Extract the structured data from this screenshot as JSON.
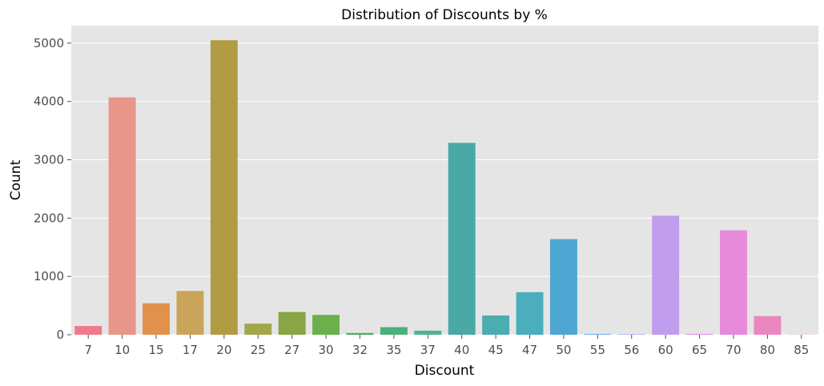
{
  "chart_data": {
    "type": "bar",
    "title": "Distribution of Discounts by %",
    "xlabel": "Discount",
    "ylabel": "Count",
    "categories": [
      "7",
      "10",
      "15",
      "17",
      "20",
      "25",
      "27",
      "30",
      "32",
      "35",
      "37",
      "40",
      "45",
      "47",
      "50",
      "55",
      "56",
      "60",
      "65",
      "70",
      "80",
      "85"
    ],
    "values": [
      150,
      4070,
      540,
      750,
      5050,
      190,
      390,
      340,
      30,
      130,
      70,
      3290,
      330,
      730,
      1640,
      15,
      10,
      2040,
      15,
      1790,
      320,
      3
    ],
    "colors": [
      "#f0798f",
      "#e8958a",
      "#e0924c",
      "#c9a45a",
      "#b19c44",
      "#a2a74a",
      "#88a644",
      "#6bb04a",
      "#4aad5a",
      "#4bb07a",
      "#4fb294",
      "#4aa9a6",
      "#4bacb2",
      "#4baebd",
      "#4da7d2",
      "#7ab4e6",
      "#a2b0f0",
      "#c19ded",
      "#de92e8",
      "#e68ad9",
      "#eb87c0",
      "#ef87ad"
    ],
    "ylim": [
      0,
      5300
    ],
    "yticks": [
      0,
      1000,
      2000,
      3000,
      4000,
      5000
    ],
    "grid": true,
    "legend": "none"
  }
}
